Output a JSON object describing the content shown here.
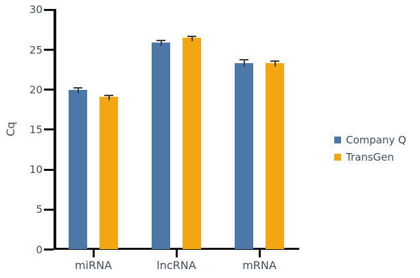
{
  "chart_data": {
    "type": "bar",
    "title": "",
    "ylabel": "Cq",
    "xlabel": "",
    "categories": [
      "miRNA",
      "lncRNA",
      "mRNA"
    ],
    "series": [
      {
        "name": "Company Q",
        "color": "#4B77A9",
        "values": [
          20.0,
          25.9,
          23.3
        ],
        "errors": [
          0.2,
          0.3,
          0.45
        ]
      },
      {
        "name": "TransGen",
        "color": "#F2A712",
        "values": [
          19.1,
          26.5,
          23.3
        ],
        "errors": [
          0.15,
          0.2,
          0.25
        ]
      }
    ],
    "ylim": [
      0,
      30
    ],
    "yticks": [
      0,
      5,
      10,
      15,
      20,
      25,
      30
    ],
    "grid": false,
    "legend_position": "right",
    "colors": {
      "axis": "#111111",
      "error_bar": "#3A3A3A",
      "text": "#3E4E5C",
      "background": "#FFFFFF"
    }
  }
}
